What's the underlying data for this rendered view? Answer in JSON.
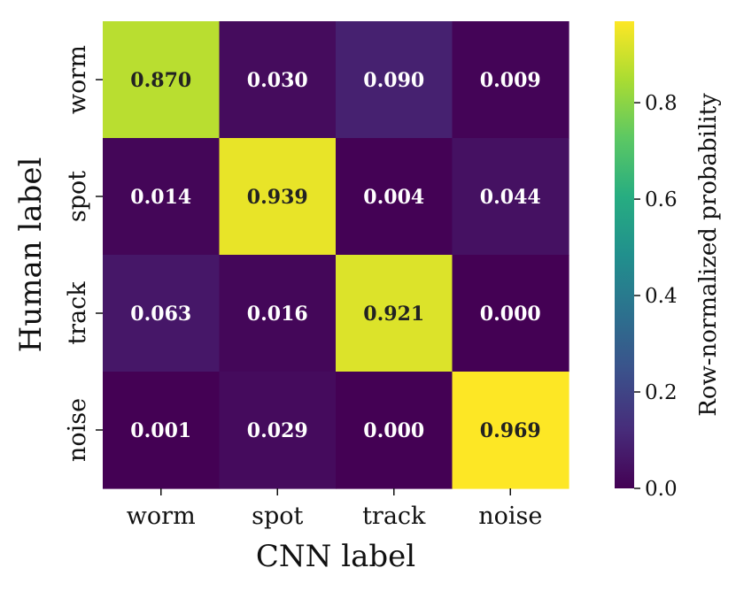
{
  "chart_data": {
    "type": "heatmap",
    "xlabel": "CNN label",
    "ylabel": "Human label",
    "x_categories": [
      "worm",
      "spot",
      "track",
      "noise"
    ],
    "y_categories": [
      "worm",
      "spot",
      "track",
      "noise"
    ],
    "values": [
      [
        0.87,
        0.03,
        0.09,
        0.009
      ],
      [
        0.014,
        0.939,
        0.004,
        0.044
      ],
      [
        0.063,
        0.016,
        0.921,
        0.0
      ],
      [
        0.001,
        0.029,
        0.0,
        0.969
      ]
    ],
    "value_labels": [
      [
        "0.870",
        "0.030",
        "0.090",
        "0.009"
      ],
      [
        "0.014",
        "0.939",
        "0.004",
        "0.044"
      ],
      [
        "0.063",
        "0.016",
        "0.921",
        "0.000"
      ],
      [
        "0.001",
        "0.029",
        "0.000",
        "0.969"
      ]
    ],
    "colormap": "viridis",
    "colorbar": {
      "label": "Row-normalized probability",
      "range": [
        0.0,
        0.969
      ],
      "ticks": [
        0.0,
        0.2,
        0.4,
        0.6,
        0.8
      ],
      "tick_labels": [
        "0.0",
        "0.2",
        "0.4",
        "0.6",
        "0.8"
      ]
    },
    "label_colors": {
      "dark_cell": "#ffffff",
      "light_cell": "#222222"
    }
  }
}
